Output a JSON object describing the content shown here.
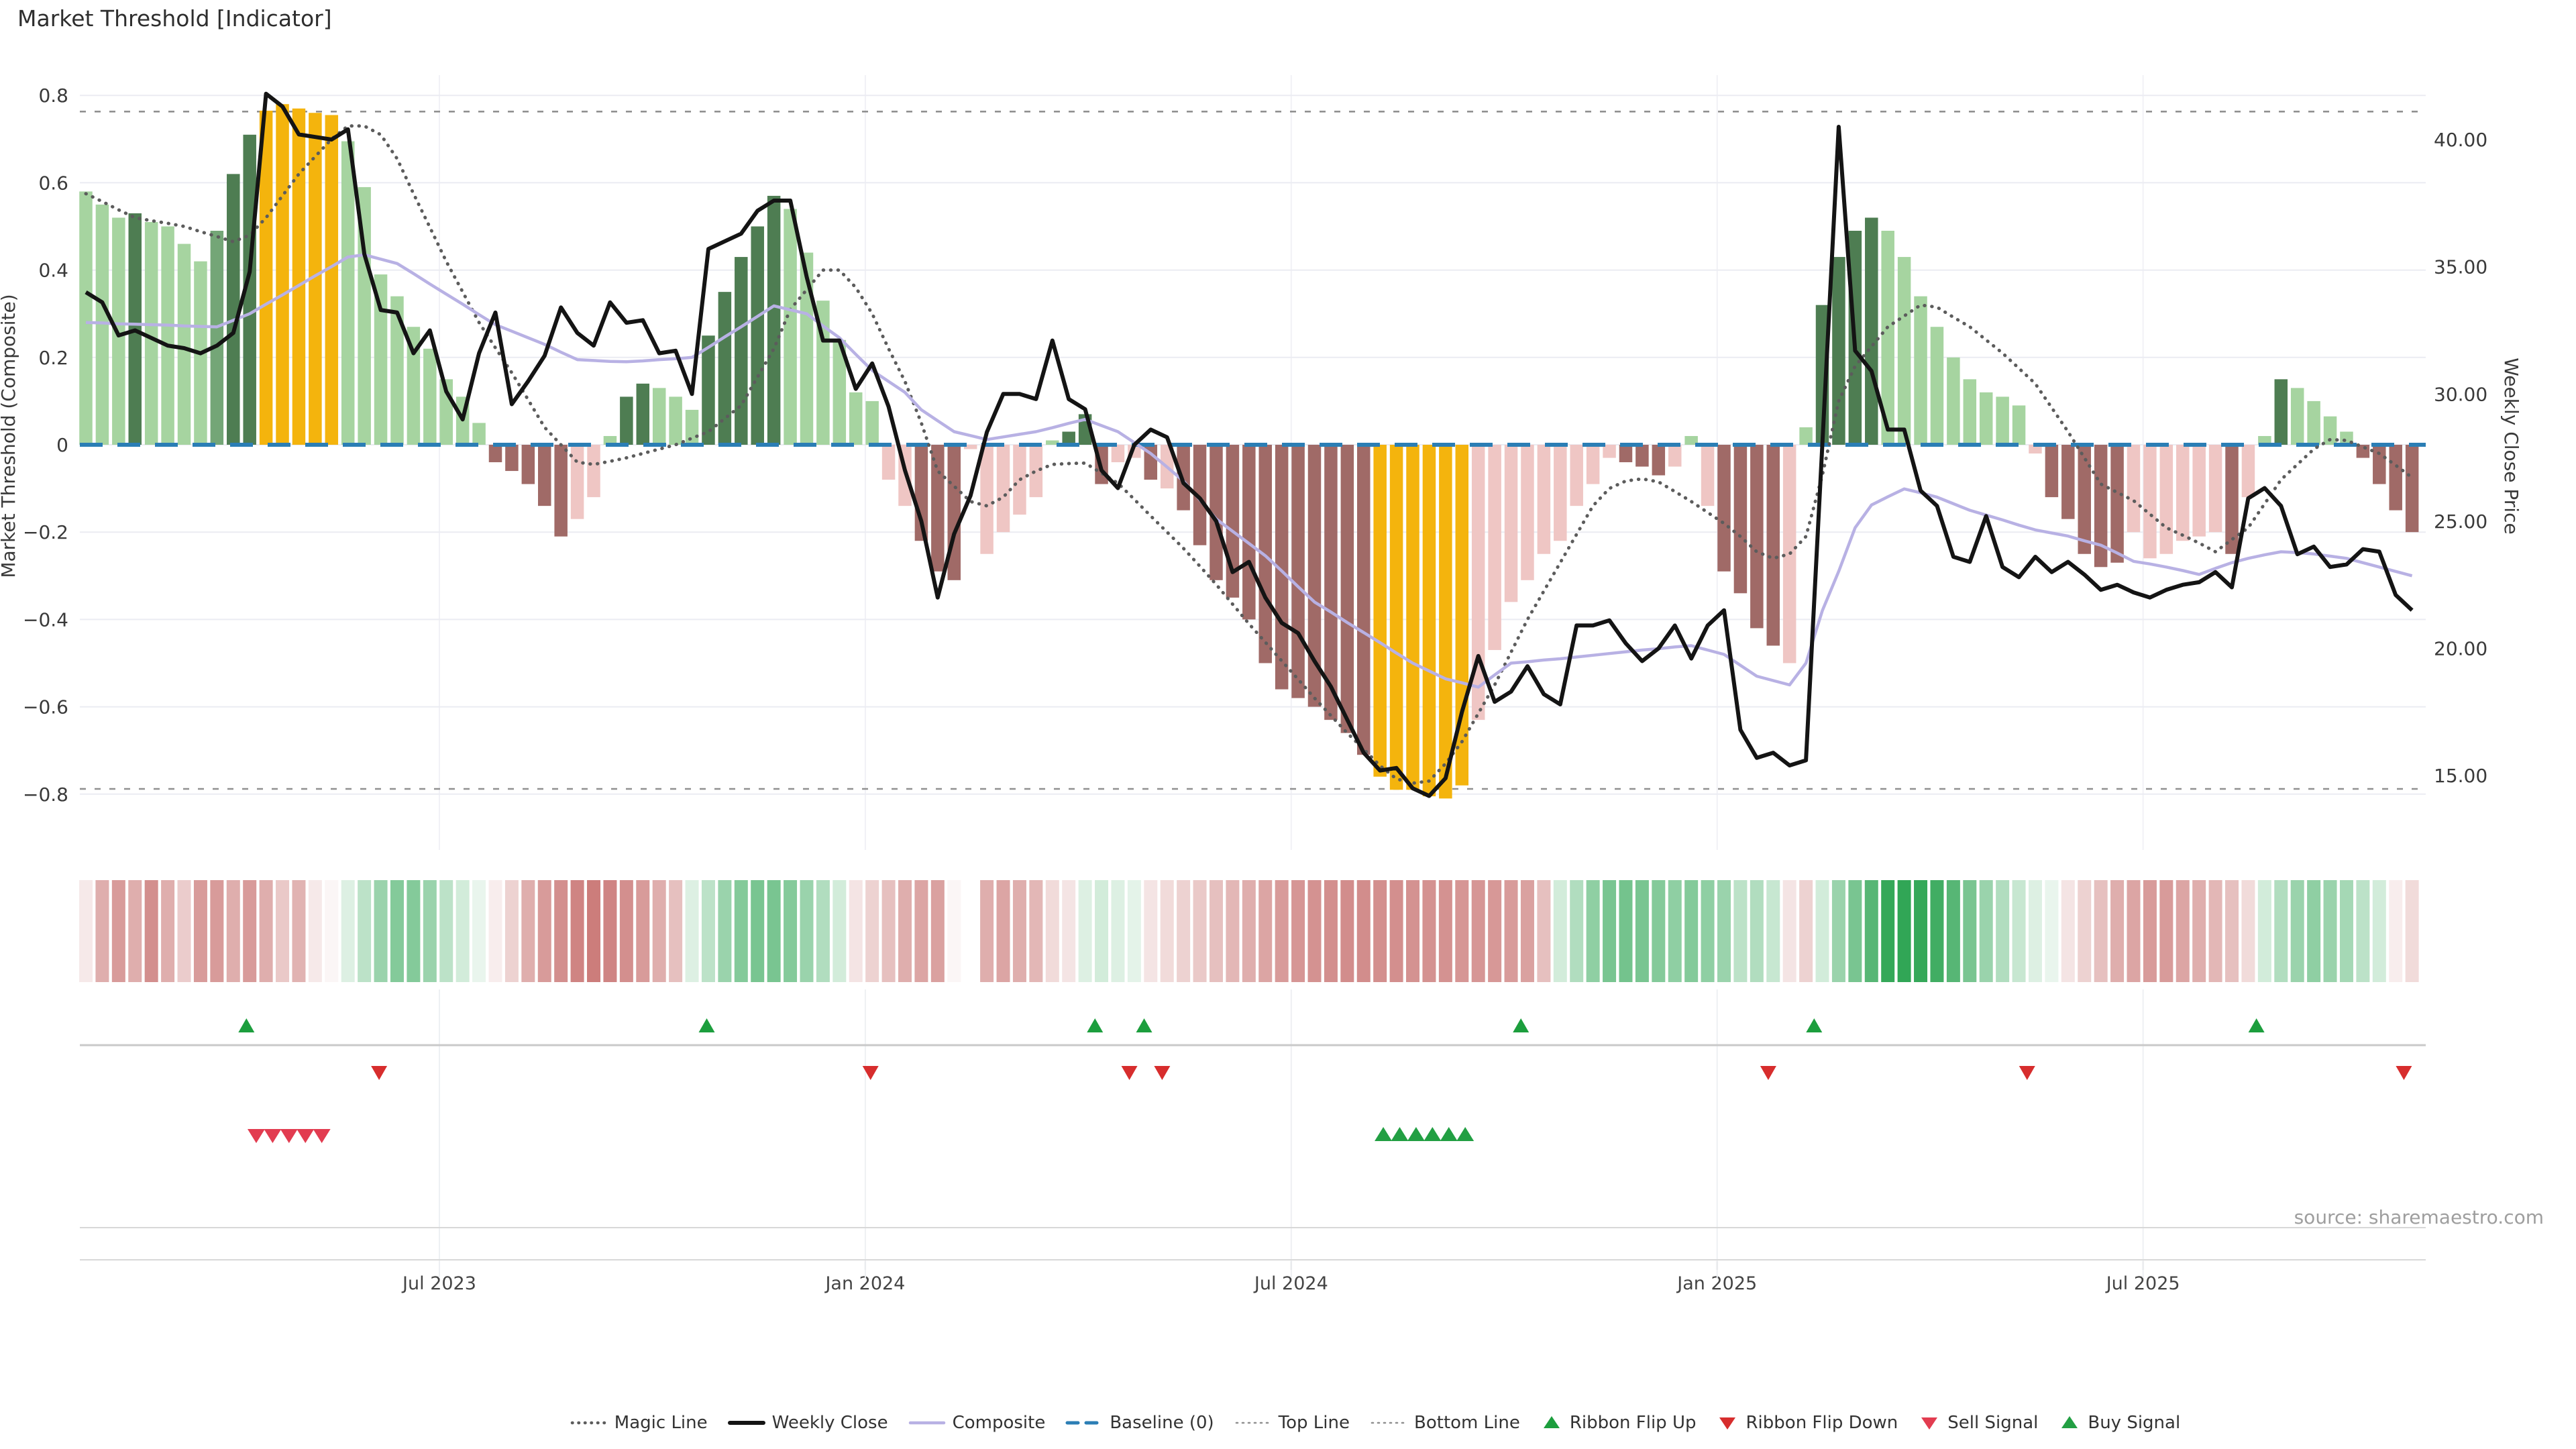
{
  "title": "Market Threshold [Indicator]",
  "source": "source: sharemaestro.com",
  "axes": {
    "left": {
      "title": "Market Threshold (Composite)",
      "tick_values": [
        0.8,
        0.6,
        0.4,
        0.2,
        0,
        -0.2,
        -0.4,
        -0.6,
        -0.8
      ],
      "tick_labels": [
        "0.8",
        "0.6",
        "0.4",
        "0.2",
        "0",
        "−0.2",
        "−0.4",
        "−0.6",
        "−0.8"
      ]
    },
    "right": {
      "title": "Weekly Close Price",
      "tick_values": [
        40,
        35,
        30,
        25,
        20,
        15
      ],
      "tick_labels": [
        "40.00",
        "35.00",
        "30.00",
        "25.00",
        "20.00",
        "15.00"
      ]
    },
    "x": {
      "ticks": [
        {
          "label": "Jul 2023",
          "i": 21.58
        },
        {
          "label": "Jan 2024",
          "i": 47.58
        },
        {
          "label": "Jul 2024",
          "i": 73.58
        },
        {
          "label": "Jan 2025",
          "i": 99.58
        },
        {
          "label": "Jul 2025",
          "i": 125.58
        }
      ]
    }
  },
  "chart_data": {
    "type": "bar+line combo indicator",
    "left_axis_range": [
      -0.9,
      0.85
    ],
    "right_axis_range": [
      13.5,
      42
    ],
    "top_line": 0.763,
    "bottom_line": -0.788,
    "baseline": 0,
    "bar_palette": {
      "L": "#a6d4a0",
      "M": "#74a677",
      "D": "#4e7d52",
      "Y": "#f4b40d",
      "P": "#efc6c4",
      "R": "#a06a67"
    },
    "bar_values": [
      0.58,
      0.55,
      0.52,
      0.53,
      0.51,
      0.5,
      0.46,
      0.42,
      0.49,
      0.62,
      0.71,
      0.765,
      0.78,
      0.77,
      0.76,
      0.755,
      0.695,
      0.59,
      0.39,
      0.34,
      0.27,
      0.22,
      0.15,
      0.11,
      0.05,
      -0.04,
      -0.06,
      -0.09,
      -0.14,
      -0.21,
      -0.17,
      -0.12,
      0.02,
      0.11,
      0.14,
      0.13,
      0.11,
      0.08,
      0.25,
      0.35,
      0.43,
      0.5,
      0.57,
      0.54,
      0.44,
      0.33,
      0.24,
      0.12,
      0.1,
      -0.08,
      -0.14,
      -0.22,
      -0.29,
      -0.31,
      -0.01,
      -0.25,
      -0.2,
      -0.16,
      -0.12,
      0.01,
      0.03,
      0.07,
      -0.09,
      -0.04,
      -0.03,
      -0.08,
      -0.1,
      -0.15,
      -0.23,
      -0.31,
      -0.35,
      -0.4,
      -0.5,
      -0.56,
      -0.58,
      -0.6,
      -0.63,
      -0.66,
      -0.71,
      -0.76,
      -0.79,
      -0.79,
      -0.805,
      -0.81,
      -0.78,
      -0.63,
      -0.47,
      -0.36,
      -0.31,
      -0.25,
      -0.22,
      -0.14,
      -0.09,
      -0.03,
      -0.04,
      -0.05,
      -0.07,
      -0.05,
      0.02,
      -0.14,
      -0.29,
      -0.34,
      -0.42,
      -0.46,
      -0.5,
      0.04,
      0.32,
      0.43,
      0.49,
      0.52,
      0.49,
      0.43,
      0.34,
      0.27,
      0.2,
      0.15,
      0.12,
      0.11,
      0.09,
      -0.02,
      -0.12,
      -0.17,
      -0.25,
      -0.28,
      -0.27,
      -0.2,
      -0.26,
      -0.25,
      -0.22,
      -0.21,
      -0.2,
      -0.25,
      -0.12,
      0.02,
      0.15,
      0.13,
      0.1,
      0.065,
      0.03,
      -0.03,
      -0.09,
      -0.15,
      -0.2
    ],
    "bar_colors": "LLLDLLLLMDDYYYYYLLLLLLLLLRRRRRPPLDDLLLDDDDDLLLLLLPPRRRPPPPPLDDRPPRPRRRRRRRRRRRRYYYYYYPPPPPPPPPRRRPLPRRRRPLDDDDLLLLLLLLLPRRRRRPPPPPPRPLDLLLLRRRR",
    "weekly_close": [
      34.0,
      33.6,
      32.3,
      32.5,
      32.2,
      31.9,
      31.8,
      31.6,
      31.9,
      32.4,
      34.8,
      41.8,
      41.3,
      40.2,
      40.1,
      40.0,
      40.4,
      35.5,
      33.3,
      33.2,
      31.6,
      32.5,
      30.1,
      29.0,
      31.6,
      33.2,
      29.6,
      30.5,
      31.5,
      33.4,
      32.4,
      31.9,
      33.6,
      32.8,
      32.9,
      31.6,
      31.7,
      30.0,
      35.7,
      36.0,
      36.3,
      37.2,
      37.6,
      37.6,
      34.6,
      32.1,
      32.1,
      30.2,
      31.2,
      29.5,
      27.0,
      25.0,
      22.0,
      24.5,
      26.0,
      28.5,
      30.0,
      30.0,
      29.8,
      32.1,
      29.8,
      29.4,
      27.0,
      26.3,
      28.0,
      28.6,
      28.3,
      26.5,
      25.9,
      25.0,
      23.0,
      23.4,
      22.0,
      21.0,
      20.6,
      19.5,
      18.5,
      17.2,
      15.9,
      15.2,
      15.3,
      14.5,
      14.2,
      14.9,
      17.5,
      19.7,
      17.9,
      18.3,
      19.3,
      18.2,
      17.8,
      20.9,
      20.9,
      21.1,
      20.2,
      19.5,
      20.0,
      20.9,
      19.6,
      20.9,
      21.5,
      16.8,
      15.7,
      15.9,
      15.4,
      15.6,
      28.0,
      40.5,
      31.7,
      30.9,
      28.6,
      28.6,
      26.2,
      25.6,
      23.6,
      23.4,
      25.2,
      23.2,
      22.8,
      23.6,
      23.0,
      23.4,
      22.9,
      22.3,
      22.5,
      22.2,
      22.0,
      22.3,
      22.5,
      22.6,
      23.0,
      22.4,
      25.9,
      26.3,
      25.6,
      23.7,
      24.0,
      23.2,
      23.3,
      23.9,
      23.8,
      22.1,
      21.5
    ],
    "magic_line": [
      0.575,
      0.557,
      0.538,
      0.52,
      0.513,
      0.507,
      0.5,
      0.488,
      0.477,
      0.465,
      0.48,
      0.52,
      0.57,
      0.62,
      0.66,
      0.7,
      0.73,
      0.73,
      0.71,
      0.655,
      0.575,
      0.498,
      0.42,
      0.35,
      0.28,
      0.222,
      0.165,
      0.103,
      0.04,
      0.0,
      -0.04,
      -0.045,
      -0.038,
      -0.03,
      -0.02,
      -0.01,
      0.0,
      0.015,
      0.03,
      0.06,
      0.09,
      0.155,
      0.22,
      0.31,
      0.355,
      0.4,
      0.4,
      0.36,
      0.3,
      0.22,
      0.145,
      0.05,
      -0.06,
      -0.095,
      -0.13,
      -0.14,
      -0.12,
      -0.08,
      -0.06,
      -0.045,
      -0.043,
      -0.042,
      -0.065,
      -0.088,
      -0.125,
      -0.163,
      -0.2,
      -0.237,
      -0.278,
      -0.32,
      -0.365,
      -0.41,
      -0.452,
      -0.495,
      -0.537,
      -0.58,
      -0.62,
      -0.66,
      -0.697,
      -0.735,
      -0.765,
      -0.775,
      -0.77,
      -0.73,
      -0.68,
      -0.615,
      -0.55,
      -0.475,
      -0.4,
      -0.335,
      -0.27,
      -0.205,
      -0.14,
      -0.1,
      -0.083,
      -0.078,
      -0.085,
      -0.107,
      -0.13,
      -0.155,
      -0.18,
      -0.21,
      -0.245,
      -0.26,
      -0.25,
      -0.21,
      -0.07,
      0.1,
      0.18,
      0.225,
      0.27,
      0.295,
      0.32,
      0.315,
      0.292,
      0.27,
      0.24,
      0.21,
      0.175,
      0.14,
      0.085,
      0.03,
      -0.03,
      -0.09,
      -0.109,
      -0.128,
      -0.159,
      -0.19,
      -0.207,
      -0.225,
      -0.245,
      -0.217,
      -0.19,
      -0.135,
      -0.08,
      -0.045,
      -0.01,
      0.012,
      0.01,
      -0.005,
      -0.02,
      -0.047,
      -0.075
    ],
    "composite": [
      0.28,
      0.279,
      0.277,
      0.276,
      0.275,
      0.274,
      0.272,
      0.271,
      0.27,
      0.285,
      0.3,
      0.322,
      0.343,
      0.365,
      0.387,
      0.408,
      0.43,
      0.435,
      0.425,
      0.415,
      0.392,
      0.368,
      0.345,
      0.322,
      0.298,
      0.275,
      0.26,
      0.245,
      0.23,
      0.212,
      0.195,
      0.193,
      0.191,
      0.19,
      0.192,
      0.195,
      0.197,
      0.2,
      0.223,
      0.247,
      0.27,
      0.294,
      0.318,
      0.309,
      0.3,
      0.272,
      0.245,
      0.207,
      0.17,
      0.145,
      0.12,
      0.08,
      0.055,
      0.03,
      0.021,
      0.012,
      0.018,
      0.024,
      0.03,
      0.039,
      0.049,
      0.058,
      0.044,
      0.03,
      0.005,
      -0.02,
      -0.051,
      -0.083,
      -0.126,
      -0.17,
      -0.198,
      -0.226,
      -0.254,
      -0.289,
      -0.325,
      -0.36,
      -0.383,
      -0.407,
      -0.43,
      -0.453,
      -0.477,
      -0.5,
      -0.518,
      -0.536,
      -0.545,
      -0.555,
      -0.527,
      -0.5,
      -0.497,
      -0.493,
      -0.49,
      -0.486,
      -0.482,
      -0.478,
      -0.474,
      -0.47,
      -0.467,
      -0.463,
      -0.46,
      -0.47,
      -0.48,
      -0.505,
      -0.53,
      -0.54,
      -0.55,
      -0.5,
      -0.38,
      -0.29,
      -0.19,
      -0.138,
      -0.119,
      -0.101,
      -0.11,
      -0.12,
      -0.135,
      -0.15,
      -0.161,
      -0.172,
      -0.184,
      -0.195,
      -0.202,
      -0.209,
      -0.22,
      -0.23,
      -0.248,
      -0.267,
      -0.273,
      -0.28,
      -0.288,
      -0.297,
      -0.283,
      -0.27,
      -0.26,
      -0.252,
      -0.245,
      -0.247,
      -0.25,
      -0.255,
      -0.26,
      -0.27,
      -0.28,
      -0.29,
      -0.3
    ],
    "ribbon": [
      -0.12,
      -0.45,
      -0.55,
      -0.45,
      -0.62,
      -0.45,
      -0.28,
      -0.55,
      -0.55,
      -0.45,
      -0.55,
      -0.45,
      -0.3,
      -0.42,
      -0.12,
      -0.05,
      0.15,
      0.3,
      0.45,
      0.55,
      0.55,
      0.45,
      0.3,
      0.2,
      0.1,
      -0.1,
      -0.25,
      -0.45,
      -0.55,
      -0.62,
      -0.68,
      -0.72,
      -0.68,
      -0.62,
      -0.55,
      -0.45,
      -0.35,
      0.15,
      0.3,
      0.45,
      0.55,
      0.6,
      0.6,
      0.55,
      0.45,
      0.35,
      0.2,
      -0.15,
      -0.25,
      -0.35,
      -0.45,
      -0.5,
      -0.52,
      -0.05,
      0.0,
      -0.45,
      -0.5,
      -0.45,
      -0.4,
      -0.2,
      -0.15,
      0.15,
      0.2,
      0.15,
      0.12,
      -0.15,
      -0.2,
      -0.25,
      -0.3,
      -0.35,
      -0.4,
      -0.45,
      -0.5,
      -0.55,
      -0.58,
      -0.6,
      -0.62,
      -0.63,
      -0.63,
      -0.62,
      -0.62,
      -0.6,
      -0.6,
      -0.6,
      -0.58,
      -0.58,
      -0.57,
      -0.55,
      -0.52,
      -0.35,
      0.2,
      0.35,
      0.5,
      0.6,
      0.62,
      0.6,
      0.55,
      0.5,
      0.55,
      0.5,
      0.45,
      0.3,
      0.35,
      0.25,
      -0.15,
      -0.25,
      0.2,
      0.45,
      0.6,
      0.75,
      0.9,
      0.92,
      0.9,
      0.85,
      0.75,
      0.6,
      0.45,
      0.35,
      0.25,
      0.15,
      0.1,
      -0.15,
      -0.25,
      -0.35,
      -0.45,
      -0.5,
      -0.55,
      -0.55,
      -0.5,
      -0.45,
      -0.4,
      -0.35,
      -0.2,
      0.2,
      0.35,
      0.45,
      0.5,
      0.45,
      0.4,
      0.3,
      0.2,
      -0.1,
      -0.2
    ],
    "signals": {
      "flip_up": [
        9.8,
        37.9,
        61.6,
        64.6,
        87.6,
        105.5,
        132.5
      ],
      "flip_down": [
        17.9,
        47.9,
        63.7,
        65.7,
        102.7,
        118.5,
        141.5
      ],
      "sell": [
        10.4,
        11.4,
        12.4,
        13.4,
        14.4
      ],
      "buy": [
        79.2,
        80.2,
        81.2,
        82.2,
        83.2,
        84.2
      ]
    },
    "colors": {
      "price": "#141414",
      "magic": "#5c5c5c",
      "composite": "#b8b1e4",
      "baseline": "#2b7eb5",
      "band_lines": "#909090",
      "grid": "#ebecf2",
      "flip_up": "#1c9e3d",
      "flip_down": "#d72d2d",
      "sell": "#e23c50",
      "buy": "#229f43",
      "ribbon_pos": "#1f9e47",
      "ribbon_neg": "#b84a48"
    }
  },
  "legend": {
    "items": [
      {
        "label": "Magic Line",
        "kind": "line",
        "color": "#5c5c5c",
        "w": 4.5,
        "dash": "0.5 9"
      },
      {
        "label": "Weekly Close",
        "kind": "line",
        "color": "#141414",
        "w": 6,
        "dash": ""
      },
      {
        "label": "Composite",
        "kind": "line",
        "color": "#b8b1e4",
        "w": 4.5,
        "dash": ""
      },
      {
        "label": "Baseline (0)",
        "kind": "line",
        "color": "#2b7eb5",
        "w": 5,
        "dash": "16 12"
      },
      {
        "label": "Top Line",
        "kind": "line",
        "color": "#909090",
        "w": 2.6,
        "dash": "2 7"
      },
      {
        "label": "Bottom Line",
        "kind": "line",
        "color": "#909090",
        "w": 2.6,
        "dash": "2 7"
      },
      {
        "label": "Ribbon Flip Up",
        "kind": "tri-up",
        "color": "#1c9e3d"
      },
      {
        "label": "Ribbon Flip Down",
        "kind": "tri-down",
        "color": "#d72d2d"
      },
      {
        "label": "Sell Signal",
        "kind": "tri-down",
        "color": "#e23c50"
      },
      {
        "label": "Buy Signal",
        "kind": "tri-up",
        "color": "#229f43"
      }
    ]
  }
}
